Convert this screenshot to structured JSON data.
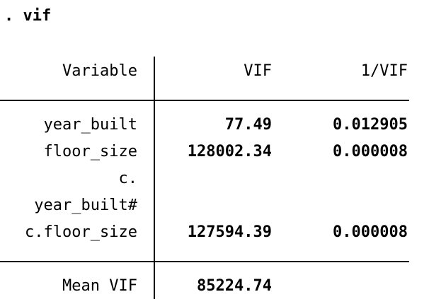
{
  "command": ". vif",
  "table": {
    "headers": {
      "variable": "Variable",
      "vif": "VIF",
      "inv_vif": "1/VIF"
    },
    "rows": [
      {
        "label_lines": [
          "year_built"
        ],
        "vif": "77.49",
        "inv_vif": "0.012905"
      },
      {
        "label_lines": [
          "floor_size"
        ],
        "vif": "128002.34",
        "inv_vif": "0.000008"
      },
      {
        "label_lines": [
          "c.",
          "year_built#",
          "c.floor_size"
        ],
        "vif": "127594.39",
        "inv_vif": "0.000008"
      }
    ],
    "mean": {
      "label": "Mean VIF",
      "vif": "85224.74"
    }
  }
}
